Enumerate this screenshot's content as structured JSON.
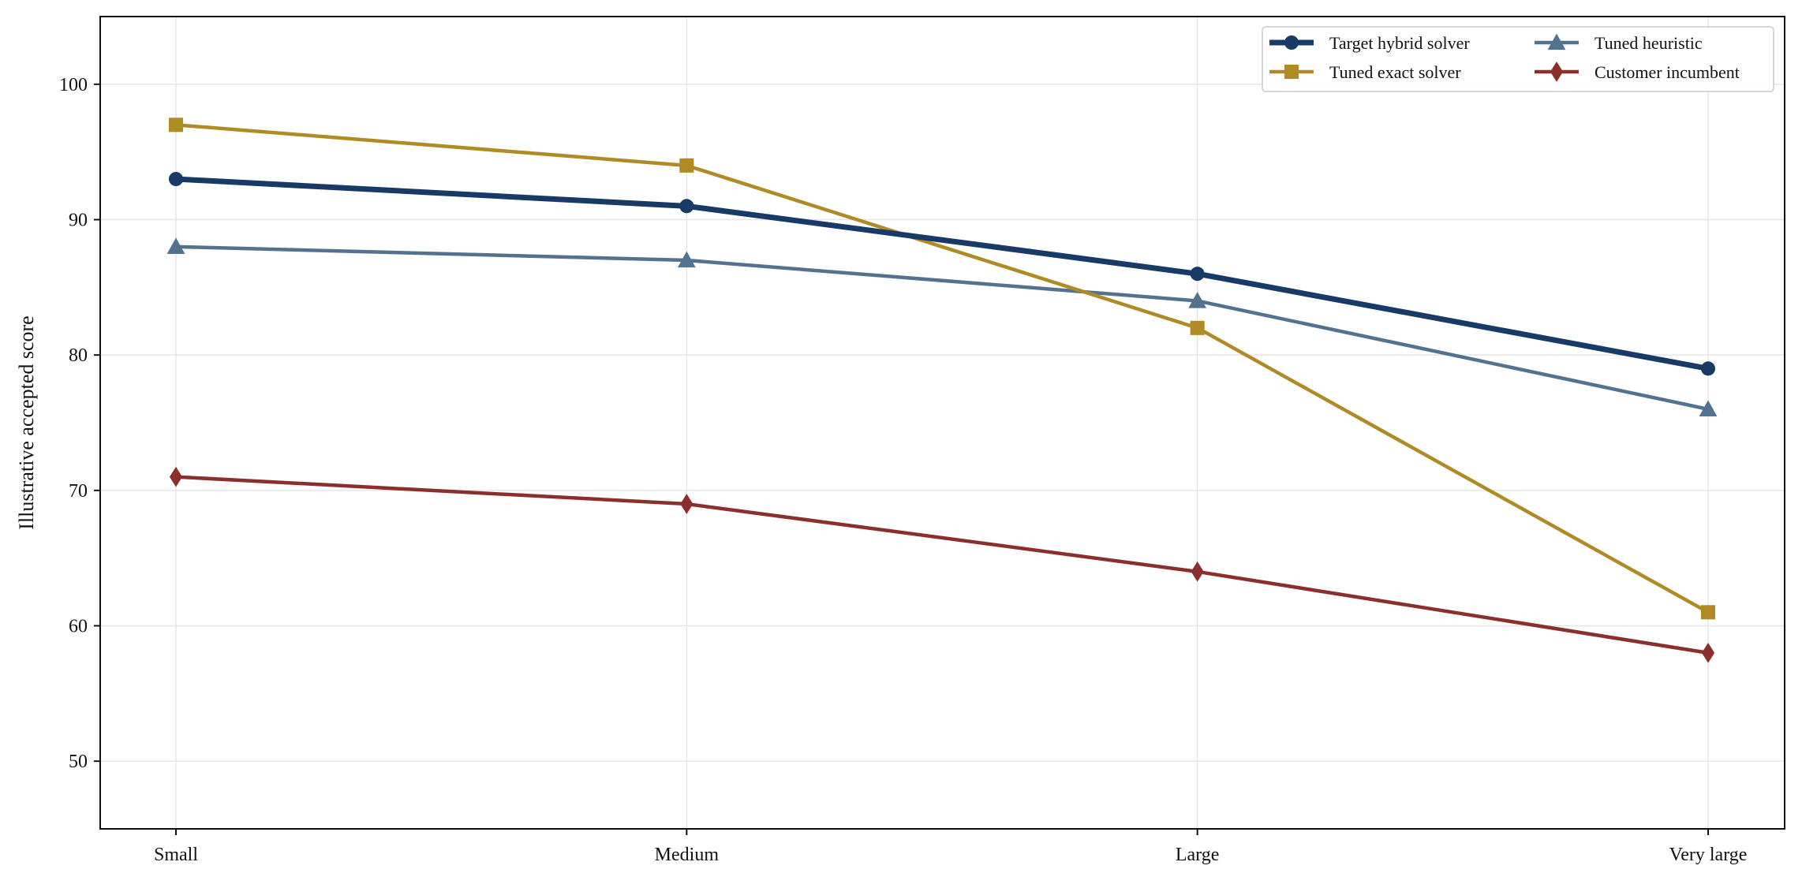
{
  "chart_data": {
    "type": "line",
    "title": "",
    "xlabel": "",
    "ylabel": "Illustrative accepted score",
    "categories": [
      "Small",
      "Medium",
      "Large",
      "Very large"
    ],
    "ylim": [
      45,
      105
    ],
    "yticks": [
      50,
      60,
      70,
      80,
      90,
      100
    ],
    "grid": true,
    "legend_position": "top-right",
    "series": [
      {
        "name": "Target hybrid solver",
        "values": [
          93,
          91,
          86,
          79
        ],
        "color": "#173a66",
        "marker": "circle"
      },
      {
        "name": "Tuned exact solver",
        "values": [
          97,
          94,
          82,
          61
        ],
        "color": "#b08a25",
        "marker": "square"
      },
      {
        "name": "Tuned heuristic",
        "values": [
          88,
          87,
          84,
          76
        ],
        "color": "#52728f",
        "marker": "triangle"
      },
      {
        "name": "Customer incumbent",
        "values": [
          71,
          69,
          64,
          58
        ],
        "color": "#8b2e2c",
        "marker": "diamond"
      }
    ]
  }
}
